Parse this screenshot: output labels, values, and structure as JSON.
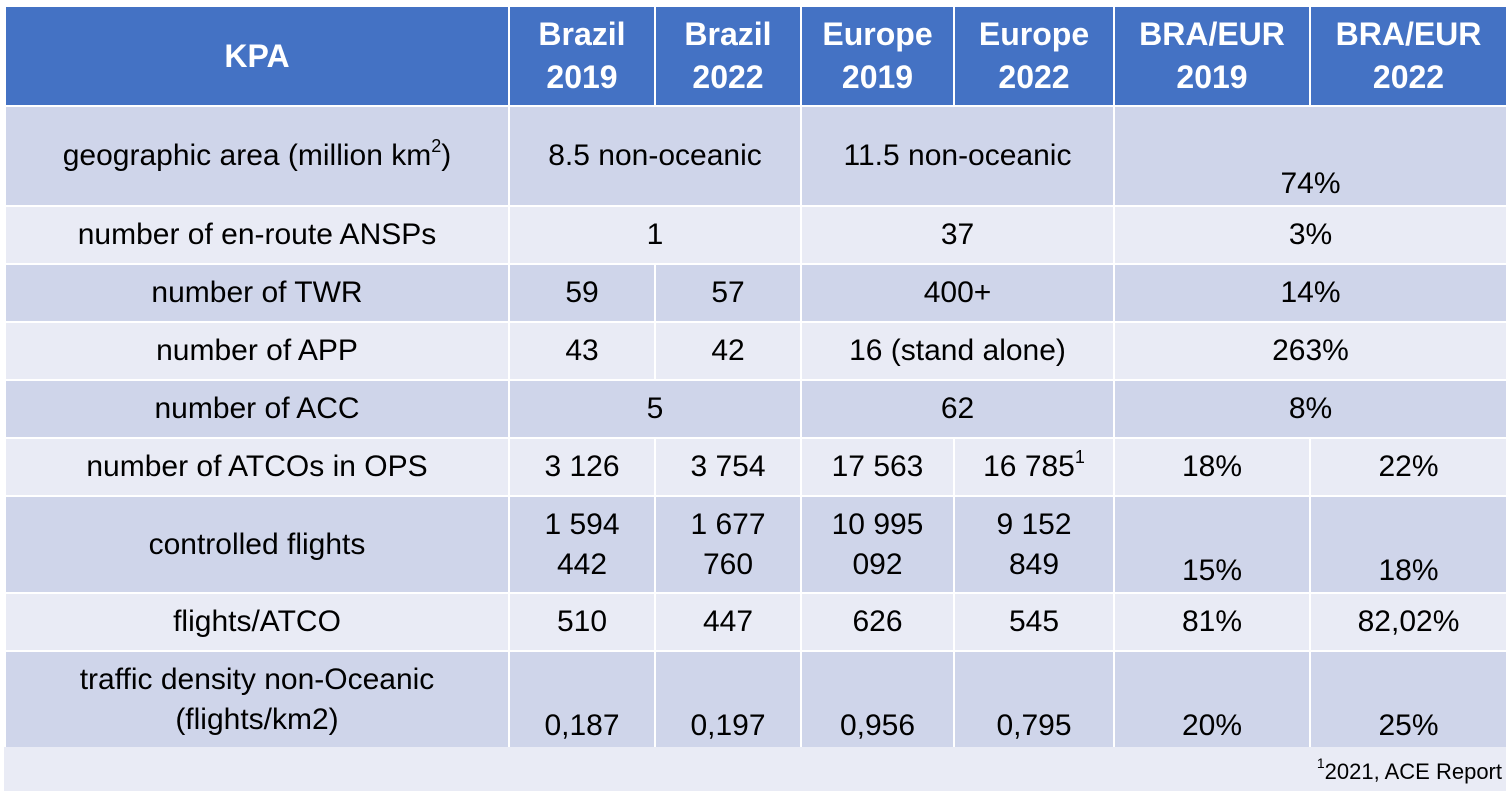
{
  "header": {
    "kpa": "KPA",
    "brazil_2019": [
      "Brazil",
      "2019"
    ],
    "brazil_2022": [
      "Brazil",
      "2022"
    ],
    "europe_2019": [
      "Europe",
      "2019"
    ],
    "europe_2022": [
      "Europe",
      "2022"
    ],
    "bra_eur_2019": [
      "BRA/EUR",
      "2019"
    ],
    "bra_eur_2022": [
      "BRA/EUR",
      "2022"
    ]
  },
  "rows": {
    "geographic_area": {
      "label": "geographic area (million km",
      "label_sup": "2",
      "label_end": ")",
      "brazil": "8.5 non-oceanic",
      "europe": "11.5 non-oceanic",
      "ratio": "74%"
    },
    "ansps": {
      "label": "number of en-route ANSPs",
      "brazil": "1",
      "europe": "37",
      "ratio": "3%"
    },
    "twr": {
      "label": "number of TWR",
      "brazil_2019": "59",
      "brazil_2022": "57",
      "europe": "400+",
      "ratio": "14%"
    },
    "app": {
      "label": "number of APP",
      "brazil_2019": "43",
      "brazil_2022": "42",
      "europe": "16 (stand alone)",
      "ratio": "263%"
    },
    "acc": {
      "label": "number of ACC",
      "brazil": "5",
      "europe": "62",
      "ratio": "8%"
    },
    "atcos": {
      "label": "number of ATCOs in OPS",
      "brazil_2019": "3 126",
      "brazil_2022": "3 754",
      "europe_2019": "17 563",
      "europe_2022": "16 785",
      "europe_2022_sup": "1",
      "ratio_2019": "18%",
      "ratio_2022": "22%"
    },
    "controlled_flights": {
      "label": "controlled flights",
      "brazil_2019": [
        "1 594",
        "442"
      ],
      "brazil_2022": [
        "1 677",
        "760"
      ],
      "europe_2019": [
        "10 995",
        "092"
      ],
      "europe_2022": [
        "9 152",
        "849"
      ],
      "ratio_2019": "15%",
      "ratio_2022": "18%"
    },
    "flights_atco": {
      "label": "flights/ATCO",
      "brazil_2019": "510",
      "brazil_2022": "447",
      "europe_2019": "626",
      "europe_2022": "545",
      "ratio_2019": "81%",
      "ratio_2022": "82,02%"
    },
    "traffic_density": {
      "label": [
        "traffic density non-Oceanic",
        "(flights/km2)"
      ],
      "brazil_2019": "0,187",
      "brazil_2022": "0,197",
      "europe_2019": "0,956",
      "europe_2022": "0,795",
      "ratio_2019": "20%",
      "ratio_2022": "25%"
    }
  },
  "footnote": {
    "sup": "1",
    "text": "2021, ACE Report"
  },
  "colors": {
    "header_bg": "#4472c4",
    "row_dark": "#cfd5ea",
    "row_light": "#e9ebf5"
  }
}
